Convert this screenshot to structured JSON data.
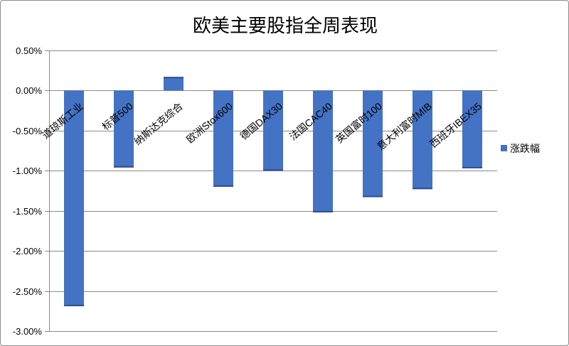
{
  "chart_data": {
    "type": "bar",
    "title": "欧美主要股指全周表现",
    "categories": [
      "道琼斯工业",
      "标普500",
      "纳斯达克综合",
      "欧洲Stox600",
      "德国DAX30",
      "法国CAC40",
      "英国富时100",
      "意大利富时MIB",
      "西班牙IBEX35"
    ],
    "series": [
      {
        "name": "涨跌幅",
        "values": [
          -2.69,
          -0.96,
          0.17,
          -1.2,
          -1.0,
          -1.52,
          -1.33,
          -1.23,
          -0.97
        ],
        "color": "#4472C4"
      }
    ],
    "value_unit": "%",
    "ylim": [
      -3.0,
      0.5
    ],
    "y_ticks": [
      0.5,
      0.0,
      -0.5,
      -1.0,
      -1.5,
      -2.0,
      -2.5,
      -3.0
    ],
    "y_tick_labels": [
      "0.50%",
      "0.00%",
      "-0.50%",
      "-1.00%",
      "-1.50%",
      "-2.00%",
      "-2.50%",
      "-3.00%"
    ],
    "grid": true,
    "legend": "right"
  }
}
